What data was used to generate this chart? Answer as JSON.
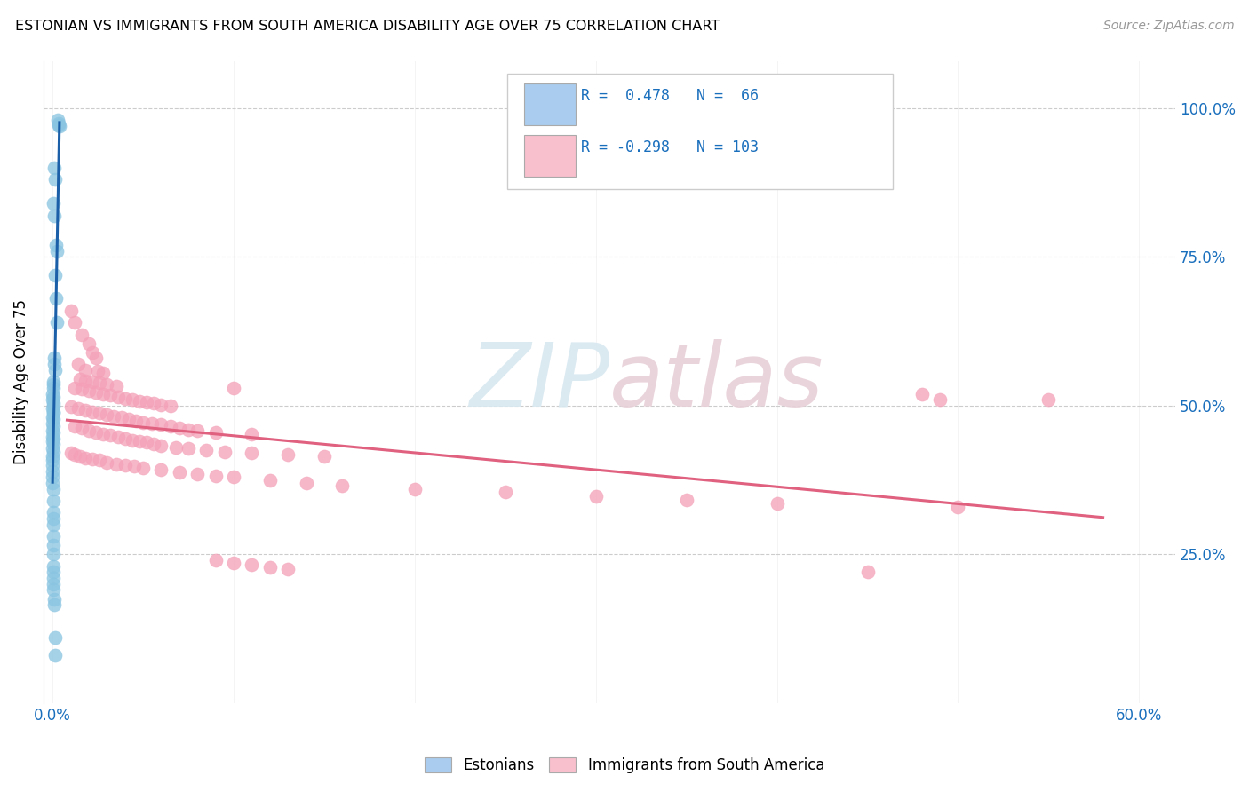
{
  "title": "ESTONIAN VS IMMIGRANTS FROM SOUTH AMERICA DISABILITY AGE OVER 75 CORRELATION CHART",
  "source": "Source: ZipAtlas.com",
  "ylabel": "Disability Age Over 75",
  "ytick_labels": [
    "100.0%",
    "75.0%",
    "50.0%",
    "25.0%"
  ],
  "ytick_values": [
    1.0,
    0.75,
    0.5,
    0.25
  ],
  "xlim": [
    -0.005,
    0.62
  ],
  "ylim": [
    0.0,
    1.08
  ],
  "watermark": "ZIPatlas",
  "bottom_legend": [
    "Estonians",
    "Immigrants from South America"
  ],
  "estonian_color": "#89c4e1",
  "immigrant_color": "#f4a0b8",
  "estonian_trend_color": "#1a5fa8",
  "immigrant_trend_color": "#e06080",
  "legend_blue_color": "#aaccee",
  "legend_pink_color": "#f8c0cc",
  "estonian_points": [
    [
      0.003,
      0.98
    ],
    [
      0.0032,
      0.975
    ],
    [
      0.0034,
      0.972
    ],
    [
      0.0036,
      0.97
    ],
    [
      0.001,
      0.9
    ],
    [
      0.0012,
      0.88
    ],
    [
      0.0005,
      0.84
    ],
    [
      0.0008,
      0.82
    ],
    [
      0.002,
      0.77
    ],
    [
      0.0022,
      0.76
    ],
    [
      0.0015,
      0.72
    ],
    [
      0.0018,
      0.68
    ],
    [
      0.0025,
      0.64
    ],
    [
      0.0008,
      0.58
    ],
    [
      0.001,
      0.57
    ],
    [
      0.0012,
      0.56
    ],
    [
      0.0002,
      0.54
    ],
    [
      0.0004,
      0.535
    ],
    [
      0.0006,
      0.53
    ],
    [
      0.0001,
      0.52
    ],
    [
      0.0002,
      0.515
    ],
    [
      0.0001,
      0.51
    ],
    [
      0.0002,
      0.505
    ],
    [
      0.0003,
      0.5
    ],
    [
      0.0001,
      0.495
    ],
    [
      0.0002,
      0.49
    ],
    [
      0.0003,
      0.488
    ],
    [
      0.0001,
      0.48
    ],
    [
      0.0002,
      0.478
    ],
    [
      0.0001,
      0.47
    ],
    [
      0.0002,
      0.465
    ],
    [
      0.0001,
      0.458
    ],
    [
      0.0002,
      0.455
    ],
    [
      0.0001,
      0.448
    ],
    [
      0.0002,
      0.444
    ],
    [
      0.0001,
      0.44
    ],
    [
      0.0002,
      0.435
    ],
    [
      0.0001,
      0.428
    ],
    [
      0.0002,
      0.422
    ],
    [
      0.0001,
      0.415
    ],
    [
      0.0001,
      0.408
    ],
    [
      0.0001,
      0.4
    ],
    [
      0.0001,
      0.39
    ],
    [
      0.0001,
      0.38
    ],
    [
      0.0001,
      0.37
    ],
    [
      0.0003,
      0.36
    ],
    [
      0.0005,
      0.34
    ],
    [
      0.0005,
      0.32
    ],
    [
      0.0003,
      0.31
    ],
    [
      0.0004,
      0.3
    ],
    [
      0.0002,
      0.28
    ],
    [
      0.0003,
      0.265
    ],
    [
      0.0003,
      0.25
    ],
    [
      0.0005,
      0.23
    ],
    [
      0.0006,
      0.22
    ],
    [
      0.0004,
      0.21
    ],
    [
      0.0002,
      0.2
    ],
    [
      0.0003,
      0.19
    ],
    [
      0.0008,
      0.175
    ],
    [
      0.001,
      0.165
    ],
    [
      0.0012,
      0.11
    ],
    [
      0.0015,
      0.08
    ]
  ],
  "immigrant_points": [
    [
      0.01,
      0.66
    ],
    [
      0.012,
      0.64
    ],
    [
      0.016,
      0.62
    ],
    [
      0.02,
      0.605
    ],
    [
      0.022,
      0.59
    ],
    [
      0.024,
      0.58
    ],
    [
      0.014,
      0.57
    ],
    [
      0.018,
      0.56
    ],
    [
      0.025,
      0.558
    ],
    [
      0.028,
      0.555
    ],
    [
      0.015,
      0.545
    ],
    [
      0.018,
      0.542
    ],
    [
      0.022,
      0.54
    ],
    [
      0.026,
      0.538
    ],
    [
      0.03,
      0.535
    ],
    [
      0.035,
      0.532
    ],
    [
      0.012,
      0.53
    ],
    [
      0.016,
      0.528
    ],
    [
      0.02,
      0.525
    ],
    [
      0.024,
      0.522
    ],
    [
      0.028,
      0.52
    ],
    [
      0.032,
      0.518
    ],
    [
      0.036,
      0.515
    ],
    [
      0.04,
      0.512
    ],
    [
      0.044,
      0.51
    ],
    [
      0.048,
      0.508
    ],
    [
      0.052,
      0.506
    ],
    [
      0.056,
      0.504
    ],
    [
      0.06,
      0.502
    ],
    [
      0.065,
      0.5
    ],
    [
      0.01,
      0.498
    ],
    [
      0.014,
      0.495
    ],
    [
      0.018,
      0.492
    ],
    [
      0.022,
      0.49
    ],
    [
      0.026,
      0.488
    ],
    [
      0.03,
      0.485
    ],
    [
      0.034,
      0.482
    ],
    [
      0.038,
      0.48
    ],
    [
      0.042,
      0.478
    ],
    [
      0.046,
      0.475
    ],
    [
      0.05,
      0.472
    ],
    [
      0.055,
      0.47
    ],
    [
      0.06,
      0.468
    ],
    [
      0.065,
      0.465
    ],
    [
      0.07,
      0.462
    ],
    [
      0.075,
      0.46
    ],
    [
      0.08,
      0.458
    ],
    [
      0.09,
      0.455
    ],
    [
      0.1,
      0.53
    ],
    [
      0.11,
      0.452
    ],
    [
      0.012,
      0.465
    ],
    [
      0.016,
      0.462
    ],
    [
      0.02,
      0.458
    ],
    [
      0.024,
      0.455
    ],
    [
      0.028,
      0.452
    ],
    [
      0.032,
      0.45
    ],
    [
      0.036,
      0.448
    ],
    [
      0.04,
      0.445
    ],
    [
      0.044,
      0.442
    ],
    [
      0.048,
      0.44
    ],
    [
      0.052,
      0.438
    ],
    [
      0.056,
      0.435
    ],
    [
      0.06,
      0.432
    ],
    [
      0.068,
      0.43
    ],
    [
      0.075,
      0.428
    ],
    [
      0.085,
      0.425
    ],
    [
      0.095,
      0.422
    ],
    [
      0.11,
      0.42
    ],
    [
      0.13,
      0.418
    ],
    [
      0.15,
      0.415
    ],
    [
      0.01,
      0.42
    ],
    [
      0.012,
      0.418
    ],
    [
      0.015,
      0.415
    ],
    [
      0.018,
      0.412
    ],
    [
      0.022,
      0.41
    ],
    [
      0.026,
      0.408
    ],
    [
      0.03,
      0.405
    ],
    [
      0.035,
      0.402
    ],
    [
      0.04,
      0.4
    ],
    [
      0.045,
      0.398
    ],
    [
      0.05,
      0.395
    ],
    [
      0.06,
      0.392
    ],
    [
      0.07,
      0.388
    ],
    [
      0.08,
      0.385
    ],
    [
      0.09,
      0.382
    ],
    [
      0.1,
      0.38
    ],
    [
      0.12,
      0.375
    ],
    [
      0.14,
      0.37
    ],
    [
      0.16,
      0.365
    ],
    [
      0.2,
      0.36
    ],
    [
      0.25,
      0.355
    ],
    [
      0.3,
      0.348
    ],
    [
      0.35,
      0.342
    ],
    [
      0.4,
      0.335
    ],
    [
      0.48,
      0.52
    ],
    [
      0.49,
      0.51
    ],
    [
      0.5,
      0.33
    ],
    [
      0.55,
      0.51
    ],
    [
      0.09,
      0.24
    ],
    [
      0.1,
      0.235
    ],
    [
      0.11,
      0.232
    ],
    [
      0.12,
      0.228
    ],
    [
      0.13,
      0.225
    ],
    [
      0.45,
      0.22
    ]
  ]
}
